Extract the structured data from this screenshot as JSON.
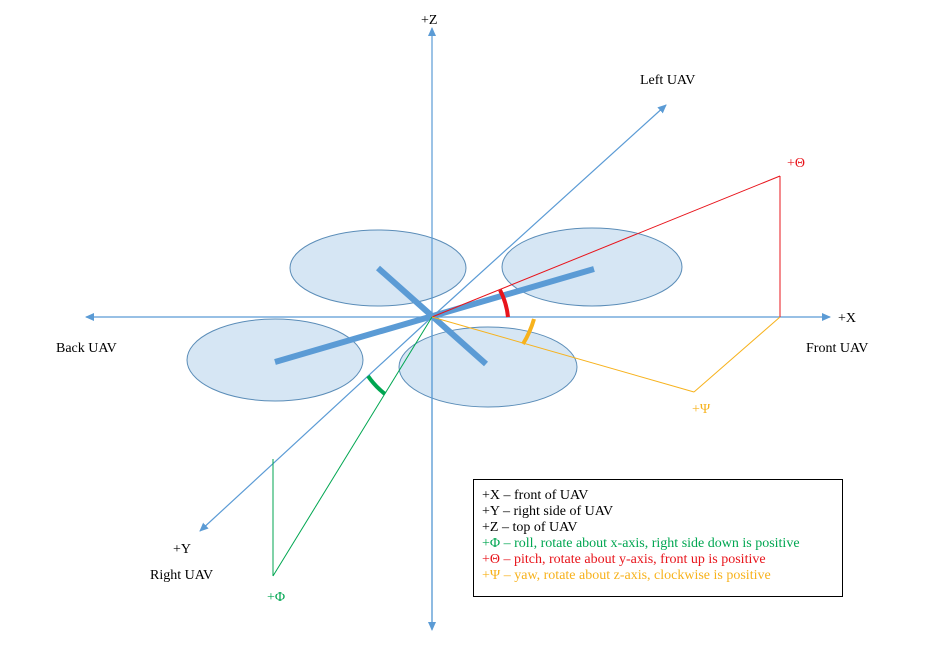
{
  "axes": {
    "z_label": "+Z",
    "x_label": "+X",
    "y_label": "+Y",
    "left_uav": "Left UAV",
    "back_uav": "Back UAV",
    "front_uav": "Front UAV",
    "right_uav": "Right UAV"
  },
  "angles": {
    "theta_label": "+Θ",
    "psi_label": "+Ψ",
    "phi_label": "+Φ"
  },
  "legend": {
    "lines": [
      {
        "text": "+X – front of UAV",
        "color": "#000000"
      },
      {
        "text": "+Y – right side of UAV",
        "color": "#000000"
      },
      {
        "text": "+Z – top of UAV",
        "color": "#000000"
      },
      {
        "text": "+Φ – roll, rotate about x-axis, right side down is positive",
        "color": "#00a651"
      },
      {
        "text": "+Θ – pitch, rotate about y-axis, front up is positive",
        "color": "#e8141b"
      },
      {
        "text": "+Ψ – yaw, rotate about z-axis, clockwise is positive",
        "color": "#f7b21c"
      }
    ]
  },
  "colors": {
    "axis": "#5b9bd5",
    "rotor_fill": "#d6e6f4",
    "frame": "#5b9bd5",
    "roll": "#00a651",
    "pitch": "#e8141b",
    "yaw": "#f7b21c"
  }
}
